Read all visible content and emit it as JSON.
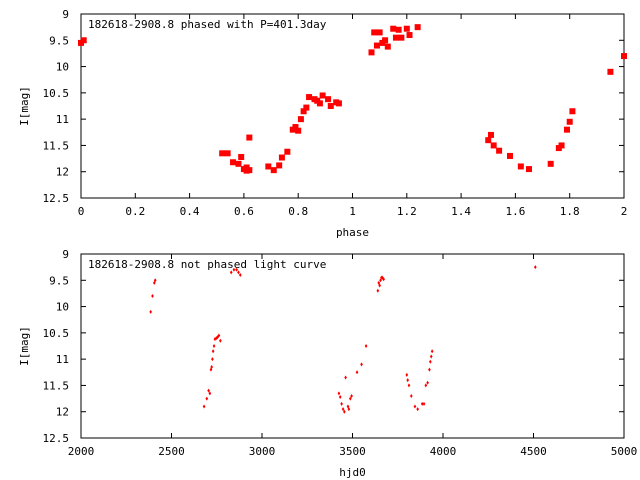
{
  "colors": {
    "points": "#ff0000",
    "frame": "#000000",
    "background": "#ffffff"
  },
  "chart_data": [
    {
      "type": "scatter",
      "title": "182618-2908.8 phased with P=401.3day",
      "xlabel": "phase",
      "ylabel": "I[mag]",
      "xlim": [
        0,
        2
      ],
      "ylim": [
        12.5,
        9
      ],
      "y_inverted": true,
      "grid": false,
      "xticks": [
        "0",
        "0.2",
        "0.4",
        "0.6",
        "0.8",
        "1",
        "1.2",
        "1.4",
        "1.6",
        "1.8",
        "2"
      ],
      "yticks": [
        "9",
        "9.5",
        "10",
        "10.5",
        "11",
        "11.5",
        "12",
        "12.5"
      ],
      "series": [
        {
          "marker": "filled-square",
          "x": [
            0.0,
            0.01,
            0.52,
            0.54,
            0.56,
            0.58,
            0.59,
            0.6,
            0.61,
            0.61,
            0.62,
            0.62,
            0.69,
            0.71,
            0.73,
            0.74,
            0.76,
            0.78,
            0.79,
            0.8,
            0.81,
            0.82,
            0.83,
            0.84,
            0.86,
            0.87,
            0.88,
            0.89,
            0.91,
            0.92,
            0.94,
            0.95,
            1.07,
            1.08,
            1.09,
            1.1,
            1.11,
            1.12,
            1.13,
            1.15,
            1.16,
            1.17,
            1.18,
            1.2,
            1.21,
            1.24,
            1.5,
            1.51,
            1.52,
            1.54,
            1.58,
            1.62,
            1.65,
            1.73,
            1.76,
            1.77,
            1.79,
            1.8,
            1.81,
            1.95,
            2.0
          ],
          "y": [
            9.55,
            9.5,
            11.65,
            11.65,
            11.82,
            11.85,
            11.72,
            11.95,
            11.98,
            11.92,
            11.97,
            11.35,
            11.9,
            11.97,
            11.88,
            11.73,
            11.62,
            11.2,
            11.15,
            11.22,
            11.0,
            10.85,
            10.78,
            10.58,
            10.62,
            10.65,
            10.7,
            10.55,
            10.62,
            10.75,
            10.68,
            10.7,
            9.73,
            9.35,
            9.6,
            9.35,
            9.55,
            9.5,
            9.62,
            9.28,
            9.45,
            9.3,
            9.45,
            9.28,
            9.4,
            9.25,
            11.4,
            11.3,
            11.5,
            11.6,
            11.7,
            11.9,
            11.95,
            11.85,
            11.55,
            11.5,
            11.2,
            11.05,
            10.85,
            10.1,
            9.8
          ]
        }
      ]
    },
    {
      "type": "scatter",
      "title": "182618-2908.8 not phased light curve",
      "xlabel": "hjd0",
      "ylabel": "I[mag]",
      "xlim": [
        2000,
        5000
      ],
      "ylim": [
        12.5,
        9
      ],
      "y_inverted": true,
      "grid": false,
      "xticks": [
        "2000",
        "2500",
        "3000",
        "3500",
        "4000",
        "4500",
        "5000"
      ],
      "yticks": [
        "9",
        "9.5",
        "10",
        "10.5",
        "11",
        "11.5",
        "12",
        "12.5"
      ],
      "series": [
        {
          "marker": "small-diamond",
          "x": [
            2385,
            2395,
            2405,
            2410,
            2680,
            2695,
            2705,
            2712,
            2718,
            2722,
            2726,
            2730,
            2735,
            2740,
            2748,
            2755,
            2762,
            2770,
            2830,
            2845,
            2860,
            2870,
            2880,
            3425,
            3432,
            3440,
            3448,
            3455,
            3462,
            3475,
            3480,
            3488,
            3495,
            3525,
            3550,
            3575,
            3640,
            3645,
            3650,
            3655,
            3660,
            3665,
            3672,
            3800,
            3805,
            3812,
            3825,
            3845,
            3860,
            3885,
            3895,
            3905,
            3915,
            3925,
            3930,
            3935,
            3940,
            4510
          ],
          "y": [
            10.1,
            9.8,
            9.55,
            9.5,
            11.9,
            11.75,
            11.6,
            11.65,
            11.2,
            11.15,
            11.0,
            10.85,
            10.75,
            10.62,
            10.6,
            10.58,
            10.55,
            10.65,
            9.35,
            9.3,
            9.3,
            9.35,
            9.4,
            11.65,
            11.72,
            11.85,
            11.95,
            12.0,
            11.35,
            11.9,
            11.95,
            11.75,
            11.7,
            11.25,
            11.1,
            10.75,
            9.7,
            9.55,
            9.6,
            9.5,
            9.45,
            9.45,
            9.48,
            11.3,
            11.4,
            11.5,
            11.7,
            11.9,
            11.95,
            11.85,
            11.85,
            11.5,
            11.45,
            11.2,
            11.05,
            10.95,
            10.85,
            9.25
          ]
        }
      ]
    }
  ]
}
